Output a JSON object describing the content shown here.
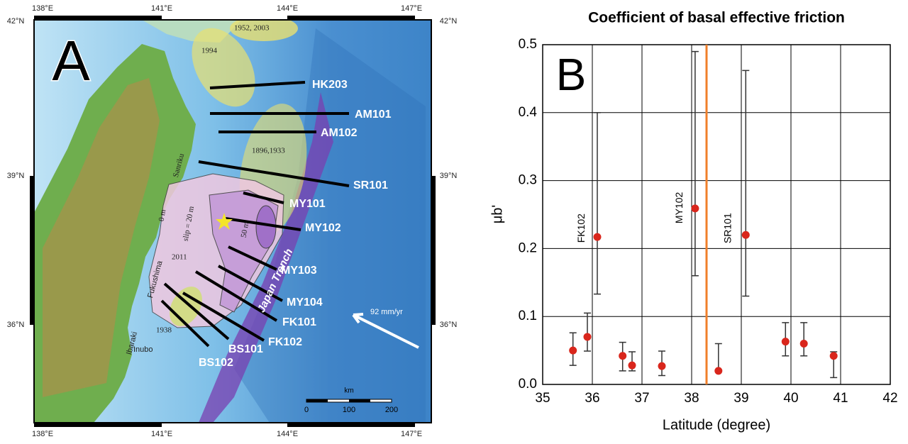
{
  "panel_a": {
    "label": "A",
    "lon_labels": [
      "138°E",
      "141°E",
      "144°E",
      "147°E"
    ],
    "lat_labels": [
      "42°N",
      "39°N",
      "36°N"
    ],
    "profiles": [
      "HK203",
      "AM101",
      "AM102",
      "SR101",
      "MY101",
      "MY102",
      "MY103",
      "MY104",
      "FK101",
      "FK102",
      "BS101",
      "BS102"
    ],
    "annotations": [
      "1952, 2003",
      "1994",
      "1896,1933",
      "Sanriku",
      "0 m",
      "slip = 20 m",
      "50 m",
      "2011",
      "Japan Trench",
      "Fukushima",
      "Ibaraki",
      "1938",
      "Inubo",
      "92 mm/yr"
    ],
    "scale_bar": {
      "unit": "km",
      "labels": [
        "0",
        "100",
        "200"
      ]
    }
  },
  "chart_data": {
    "type": "scatter",
    "panel_label": "B",
    "title": "Coefficient of basal effective friction",
    "xlabel": "Latitude (degree)",
    "ylabel": "μb'",
    "xlim": [
      35,
      42
    ],
    "ylim": [
      0,
      0.5
    ],
    "xticks": [
      35,
      36,
      37,
      38,
      39,
      40,
      41,
      42
    ],
    "yticks": [
      {
        "value": 0,
        "label": "0.0"
      },
      0.1,
      0.2,
      0.3,
      0.4,
      0.5
    ],
    "grid": true,
    "x": [
      35.61,
      35.9,
      36.1,
      36.61,
      36.8,
      37.4,
      38.07,
      38.54,
      39.09,
      39.89,
      40.26,
      40.86
    ],
    "values": [
      0.05,
      0.07,
      0.217,
      0.042,
      0.028,
      0.027,
      0.259,
      0.02,
      0.22,
      0.063,
      0.06,
      0.042
    ],
    "ymin": [
      0.028,
      0.049,
      0.133,
      0.02,
      0.02,
      0.013,
      0.16,
      0.02,
      0.13,
      0.042,
      0.042,
      0.01
    ],
    "ymax": [
      0.076,
      0.105,
      0.4,
      0.062,
      0.048,
      0.049,
      0.49,
      0.06,
      0.462,
      0.091,
      0.091,
      0.048
    ],
    "color": "#d9261c",
    "errorbar_color": "#333333",
    "reference_line": {
      "x": 38.3,
      "color": "#f07f2a"
    },
    "annotations": [
      {
        "text": "FK102",
        "x": 35.79,
        "y": 0.23
      },
      {
        "text": "MY102",
        "x": 37.76,
        "y": 0.26
      },
      {
        "text": "SR101",
        "x": 38.74,
        "y": 0.23
      }
    ]
  }
}
